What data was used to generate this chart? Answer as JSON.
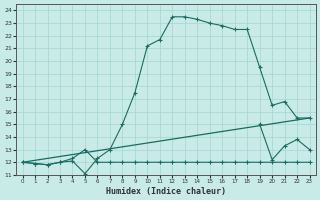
{
  "title": "",
  "xlabel": "Humidex (Indice chaleur)",
  "ylabel": "",
  "bg_color": "#c8ebe8",
  "grid_color": "#a8d8d4",
  "line_color": "#1a6b60",
  "xlim": [
    -0.5,
    23.5
  ],
  "ylim": [
    11.0,
    24.5
  ],
  "xticks": [
    0,
    1,
    2,
    3,
    4,
    5,
    6,
    7,
    8,
    9,
    10,
    11,
    12,
    13,
    14,
    15,
    16,
    17,
    18,
    19,
    20,
    21,
    22,
    23
  ],
  "yticks": [
    11,
    12,
    13,
    14,
    15,
    16,
    17,
    18,
    19,
    20,
    21,
    22,
    23,
    24
  ],
  "curve1_x": [
    0,
    1,
    2,
    3,
    4,
    5,
    6,
    7,
    8,
    9,
    10,
    11,
    12,
    13,
    14,
    15,
    16,
    17,
    18,
    19,
    20,
    21,
    22,
    23
  ],
  "curve1_y": [
    12.0,
    11.9,
    11.8,
    12.0,
    12.1,
    11.1,
    12.3,
    13.0,
    15.0,
    17.5,
    21.2,
    21.7,
    23.5,
    23.5,
    23.3,
    23.0,
    22.8,
    22.5,
    22.5,
    19.5,
    16.5,
    16.8,
    15.5,
    15.5
  ],
  "curve2_x": [
    0,
    1,
    2,
    3,
    4,
    5,
    6,
    7,
    8,
    9,
    10,
    11,
    12,
    13,
    14,
    15,
    16,
    17,
    18,
    19,
    20,
    21,
    22,
    23
  ],
  "curve2_y": [
    12.0,
    11.9,
    11.8,
    12.0,
    12.3,
    13.0,
    12.0,
    12.0,
    12.0,
    12.0,
    12.0,
    12.0,
    12.0,
    12.0,
    12.0,
    12.0,
    12.0,
    12.0,
    12.0,
    12.0,
    12.0,
    12.0,
    12.0,
    12.0
  ],
  "line_x": [
    0,
    23
  ],
  "line_y": [
    12.0,
    15.5
  ],
  "curve3_x": [
    19,
    20,
    21,
    22,
    23
  ],
  "curve3_y": [
    15.0,
    12.2,
    13.3,
    13.8,
    13.0
  ]
}
